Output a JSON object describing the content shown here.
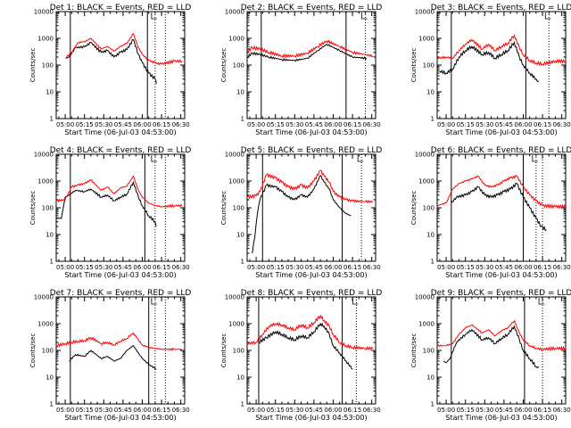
{
  "shared": {
    "ylabel": "Counts/sec",
    "xlabel": "Start Time (06-Jul-03 04:53:00)",
    "y_ticks": [
      "1",
      "10",
      "100",
      "1000",
      "10000"
    ],
    "ylim": [
      1,
      10000
    ],
    "y_scale": "log",
    "x_ticks": [
      "05:00",
      "05:15",
      "05:30",
      "05:45",
      "06:00",
      "06:15",
      "06:30"
    ],
    "xlim": [
      "04:53",
      "06:33"
    ],
    "colors": {
      "black_series": "#000000",
      "red_series": "#ff0000",
      "axes": "#000000"
    },
    "flag_label": "L"
  },
  "chart_data": [
    {
      "type": "line",
      "title": "Det 1: BLACK = Events, RED = LLD",
      "series": [
        {
          "name": "BLACK = Events",
          "x": [
            "05:01",
            "05:03",
            "05:08",
            "05:15",
            "05:20",
            "05:28",
            "05:33",
            "05:38",
            "05:43",
            "05:48",
            "05:53",
            "05:57",
            "06:00",
            "06:05",
            "06:10",
            "06:11"
          ],
          "y": [
            180,
            200,
            450,
            480,
            700,
            300,
            350,
            200,
            300,
            380,
            900,
            250,
            120,
            50,
            30,
            20
          ]
        },
        {
          "name": "RED = LLD",
          "x": [
            "05:00",
            "05:05",
            "05:10",
            "05:15",
            "05:20",
            "05:28",
            "05:33",
            "05:38",
            "05:43",
            "05:48",
            "05:53",
            "05:57",
            "06:00",
            "06:05",
            "06:10",
            "06:15",
            "06:25",
            "06:31"
          ],
          "y": [
            180,
            300,
            700,
            750,
            1000,
            400,
            500,
            330,
            500,
            650,
            1500,
            450,
            250,
            150,
            120,
            110,
            140,
            140
          ]
        }
      ],
      "vlines_solid": [
        "05:04",
        "06:04"
      ],
      "vlines_dotted": [
        "06:10",
        "06:18"
      ]
    },
    {
      "type": "line",
      "title": "Det 2: BLACK = Events, RED = LLD",
      "series": [
        {
          "name": "BLACK = Events",
          "x": [
            "04:53",
            "04:57",
            "05:03",
            "05:10",
            "05:20",
            "05:30",
            "05:40",
            "05:48",
            "05:55",
            "06:05",
            "06:15",
            "06:26"
          ],
          "y": [
            200,
            280,
            250,
            200,
            160,
            150,
            180,
            350,
            600,
            350,
            200,
            180
          ]
        },
        {
          "name": "RED = LLD",
          "x": [
            "04:53",
            "04:57",
            "05:03",
            "05:10",
            "05:20",
            "05:30",
            "05:40",
            "05:48",
            "05:55",
            "06:05",
            "06:15",
            "06:31"
          ],
          "y": [
            330,
            450,
            400,
            300,
            220,
            220,
            280,
            500,
            800,
            500,
            300,
            220
          ]
        }
      ],
      "vlines_solid": [
        "05:04",
        "06:10"
      ],
      "vlines_dotted": [
        "06:25"
      ]
    },
    {
      "type": "line",
      "title": "Det 3: BLACK = Events, RED = LLD",
      "series": [
        {
          "name": "BLACK = Events",
          "x": [
            "04:55",
            "05:00",
            "05:05",
            "05:10",
            "05:15",
            "05:20",
            "05:28",
            "05:33",
            "05:38",
            "05:43",
            "05:48",
            "05:53",
            "05:57",
            "06:00",
            "06:05",
            "06:10",
            "06:12"
          ],
          "y": [
            60,
            50,
            70,
            200,
            350,
            500,
            250,
            300,
            180,
            250,
            350,
            700,
            200,
            100,
            50,
            30,
            25
          ]
        },
        {
          "name": "RED = LLD",
          "x": [
            "04:53",
            "05:00",
            "05:05",
            "05:10",
            "05:15",
            "05:20",
            "05:28",
            "05:33",
            "05:38",
            "05:43",
            "05:48",
            "05:53",
            "05:57",
            "06:00",
            "06:05",
            "06:10",
            "06:15",
            "06:25",
            "06:33"
          ],
          "y": [
            180,
            200,
            180,
            350,
            600,
            900,
            400,
            600,
            350,
            500,
            650,
            1300,
            450,
            250,
            150,
            120,
            110,
            140,
            140
          ]
        }
      ],
      "vlines_solid": [
        "05:04",
        "06:02"
      ],
      "vlines_dotted": [
        "06:20"
      ]
    },
    {
      "type": "line",
      "title": "Det 4: BLACK = Events, RED = LLD",
      "series": [
        {
          "name": "BLACK = Events",
          "x": [
            "04:53",
            "04:55",
            "04:57",
            "05:00",
            "05:03",
            "05:08",
            "05:15",
            "05:20",
            "05:28",
            "05:33",
            "05:38",
            "05:43",
            "05:48",
            "05:53",
            "05:57",
            "06:00",
            "06:05",
            "06:10",
            "06:11"
          ],
          "y": [
            40,
            40,
            40,
            250,
            300,
            450,
            400,
            500,
            250,
            300,
            180,
            250,
            320,
            900,
            250,
            120,
            50,
            30,
            20
          ]
        },
        {
          "name": "RED = LLD",
          "x": [
            "04:53",
            "05:00",
            "05:05",
            "05:10",
            "05:15",
            "05:20",
            "05:28",
            "05:33",
            "05:38",
            "05:43",
            "05:48",
            "05:53",
            "05:57",
            "06:00",
            "06:05",
            "06:10",
            "06:15",
            "06:25",
            "06:31"
          ],
          "y": [
            180,
            200,
            600,
            700,
            800,
            1100,
            450,
            600,
            330,
            550,
            650,
            1500,
            450,
            250,
            150,
            120,
            110,
            120,
            120
          ]
        }
      ],
      "vlines_solid": [
        "05:04",
        "06:02"
      ],
      "vlines_dotted": [
        "06:10",
        "06:18"
      ]
    },
    {
      "type": "line",
      "title": "Det 5: BLACK = Events, RED = LLD",
      "series": [
        {
          "name": "BLACK = Events",
          "x": [
            "04:57",
            "04:59",
            "05:01",
            "05:03",
            "05:08",
            "05:15",
            "05:20",
            "05:25",
            "05:30",
            "05:35",
            "05:40",
            "05:45",
            "05:50",
            "05:53",
            "05:57",
            "06:00",
            "06:05",
            "06:10",
            "06:14"
          ],
          "y": [
            2,
            8,
            60,
            200,
            700,
            600,
            400,
            250,
            200,
            300,
            250,
            500,
            1600,
            900,
            500,
            200,
            100,
            60,
            50
          ]
        },
        {
          "name": "RED = LLD",
          "x": [
            "04:53",
            "05:00",
            "05:03",
            "05:08",
            "05:15",
            "05:20",
            "05:25",
            "05:30",
            "05:35",
            "05:40",
            "05:45",
            "05:50",
            "05:53",
            "05:57",
            "06:00",
            "06:05",
            "06:10",
            "06:15",
            "06:25",
            "06:31"
          ],
          "y": [
            250,
            280,
            400,
            1700,
            1300,
            900,
            600,
            500,
            700,
            550,
            1000,
            2500,
            1500,
            900,
            400,
            250,
            200,
            180,
            170,
            170
          ]
        }
      ],
      "vlines_solid": [
        "05:05",
        "06:07"
      ],
      "vlines_dotted": [
        "06:22"
      ]
    },
    {
      "type": "line",
      "title": "Det 6: BLACK = Events, RED = LLD",
      "series": [
        {
          "name": "BLACK = Events",
          "x": [
            "05:04",
            "05:08",
            "05:15",
            "05:20",
            "05:25",
            "05:30",
            "05:35",
            "05:40",
            "05:45",
            "05:50",
            "05:55",
            "06:00",
            "06:05",
            "06:10",
            "06:14",
            "06:18"
          ],
          "y": [
            150,
            250,
            300,
            400,
            600,
            300,
            250,
            300,
            400,
            500,
            800,
            250,
            100,
            40,
            20,
            15
          ]
        },
        {
          "name": "RED = LLD",
          "x": [
            "04:53",
            "05:00",
            "05:05",
            "05:10",
            "05:15",
            "05:20",
            "05:25",
            "05:30",
            "05:35",
            "05:40",
            "05:45",
            "05:50",
            "05:55",
            "06:00",
            "06:05",
            "06:10",
            "06:15",
            "06:25",
            "06:33"
          ],
          "y": [
            120,
            150,
            500,
            800,
            1000,
            1200,
            1500,
            700,
            600,
            700,
            1000,
            1300,
            1500,
            600,
            300,
            180,
            120,
            110,
            110
          ]
        }
      ],
      "vlines_solid": [
        "05:04",
        "06:00"
      ],
      "vlines_dotted": [
        "06:10",
        "06:15"
      ]
    },
    {
      "type": "line",
      "title": "Det 7: BLACK = Events, RED = LLD",
      "series": [
        {
          "name": "BLACK = Events",
          "x": [
            "05:03",
            "05:08",
            "05:15",
            "05:20",
            "05:28",
            "05:33",
            "05:38",
            "05:43",
            "05:48",
            "05:53",
            "05:57",
            "06:00",
            "06:05",
            "06:11"
          ],
          "y": [
            40,
            70,
            60,
            100,
            50,
            60,
            40,
            50,
            100,
            150,
            80,
            50,
            30,
            20
          ]
        },
        {
          "name": "RED = LLD",
          "x": [
            "04:53",
            "05:00",
            "05:05",
            "05:10",
            "05:15",
            "05:20",
            "05:28",
            "05:33",
            "05:38",
            "05:43",
            "05:48",
            "05:53",
            "05:57",
            "06:00",
            "06:05",
            "06:10",
            "06:15",
            "06:25",
            "06:31"
          ],
          "y": [
            150,
            180,
            200,
            220,
            230,
            300,
            180,
            200,
            160,
            220,
            280,
            450,
            250,
            160,
            130,
            120,
            110,
            110,
            110
          ]
        }
      ],
      "vlines_solid": [
        "05:04",
        "06:05"
      ],
      "vlines_dotted": [
        "06:10",
        "06:18"
      ]
    },
    {
      "type": "line",
      "title": "Det 8: BLACK = Events, RED = LLD",
      "series": [
        {
          "name": "BLACK = Events",
          "x": [
            "05:02",
            "05:08",
            "05:15",
            "05:20",
            "05:25",
            "05:30",
            "05:35",
            "05:40",
            "05:45",
            "05:50",
            "05:53",
            "05:57",
            "06:00",
            "06:05",
            "06:10",
            "06:15"
          ],
          "y": [
            200,
            300,
            500,
            400,
            300,
            250,
            350,
            300,
            500,
            1000,
            800,
            400,
            150,
            80,
            40,
            20
          ]
        },
        {
          "name": "RED = LLD",
          "x": [
            "04:53",
            "05:00",
            "05:05",
            "05:10",
            "05:15",
            "05:20",
            "05:25",
            "05:30",
            "05:35",
            "05:40",
            "05:45",
            "05:50",
            "05:53",
            "05:57",
            "06:00",
            "06:05",
            "06:10",
            "06:15",
            "06:25",
            "06:31"
          ],
          "y": [
            180,
            200,
            400,
            800,
            1000,
            900,
            700,
            600,
            900,
            700,
            1100,
            2000,
            1300,
            800,
            400,
            200,
            150,
            130,
            120,
            120
          ]
        }
      ],
      "vlines_solid": [
        "05:02",
        "06:07"
      ],
      "vlines_dotted": [
        "06:18"
      ]
    },
    {
      "type": "line",
      "title": "Det 9: BLACK = Events, RED = LLD",
      "series": [
        {
          "name": "BLACK = Events",
          "x": [
            "04:58",
            "05:00",
            "05:03",
            "05:08",
            "05:15",
            "05:20",
            "05:28",
            "05:33",
            "05:38",
            "05:43",
            "05:48",
            "05:53",
            "05:57",
            "06:00",
            "06:05",
            "06:10",
            "06:12"
          ],
          "y": [
            40,
            35,
            50,
            200,
            400,
            600,
            250,
            300,
            180,
            280,
            400,
            800,
            250,
            100,
            50,
            25,
            25
          ]
        },
        {
          "name": "RED = LLD",
          "x": [
            "04:53",
            "05:00",
            "05:05",
            "05:10",
            "05:15",
            "05:20",
            "05:28",
            "05:33",
            "05:38",
            "05:43",
            "05:48",
            "05:53",
            "05:57",
            "06:00",
            "06:05",
            "06:10",
            "06:15",
            "06:25",
            "06:33"
          ],
          "y": [
            150,
            150,
            180,
            400,
            700,
            900,
            450,
            600,
            350,
            550,
            700,
            1300,
            450,
            250,
            150,
            120,
            110,
            120,
            120
          ]
        }
      ],
      "vlines_solid": [
        "05:04",
        "06:01"
      ],
      "vlines_dotted": [
        "06:15"
      ]
    }
  ]
}
